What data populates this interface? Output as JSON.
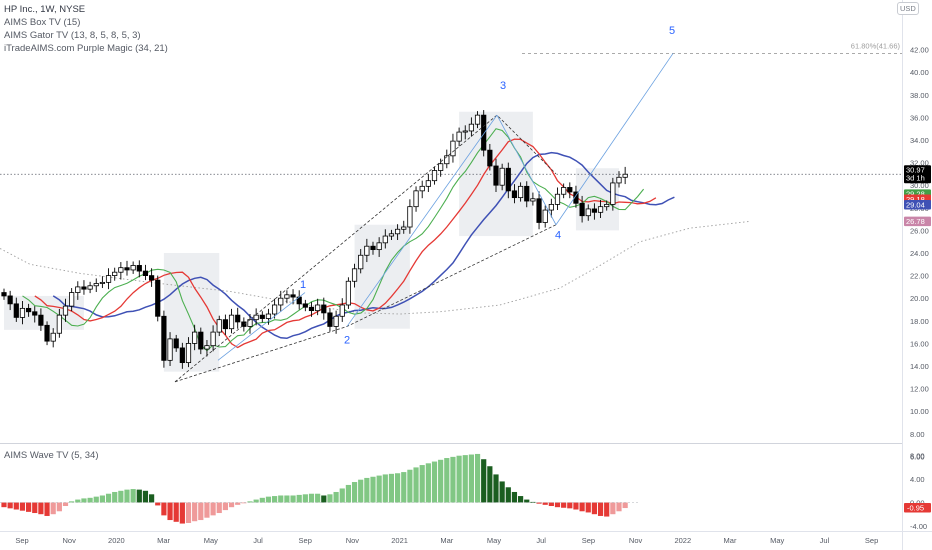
{
  "legend": {
    "symbol": "HP Inc., 1W, NYSE",
    "indicators": [
      "AIMS Box TV (15)",
      "AIMS Gator TV (13, 8, 5, 8, 5, 3)",
      "iTradeAIMS.com Purple Magic (34, 21)"
    ]
  },
  "oscillator": {
    "title": "AIMS Wave TV (5, 34)"
  },
  "currency_badge": "USD",
  "price_axis": {
    "ticks": [
      "42.00",
      "40.00",
      "38.00",
      "36.00",
      "34.00",
      "32.00",
      "30.00",
      "28.00",
      "26.00",
      "24.00",
      "22.00",
      "20.00",
      "18.00",
      "16.00",
      "14.00",
      "12.00",
      "10.00",
      "8.00",
      "6.00"
    ],
    "labels": [
      {
        "text": "30.97",
        "sub": "3d 1h",
        "bg": "#000000",
        "value": 30.97
      },
      {
        "text": "29.28",
        "bg": "#43a047",
        "value": 29.28
      },
      {
        "text": "29.18",
        "bg": "#e53935",
        "value": 29.18
      },
      {
        "text": "29.04",
        "bg": "#3f51b5",
        "value": 29.04
      },
      {
        "text": "26.78",
        "bg": "#c985a8",
        "value": 26.78
      }
    ]
  },
  "osc_axis": {
    "ticks": [
      "8.00",
      "4.00",
      "0.00",
      "-4.00"
    ],
    "label": {
      "text": "-0.95",
      "bg": "#e53935",
      "value": -0.95
    }
  },
  "time_axis": [
    "Sep",
    "Nov",
    "2020",
    "Mar",
    "May",
    "Jul",
    "Sep",
    "Nov",
    "2021",
    "Mar",
    "May",
    "Jul",
    "Sep",
    "Nov",
    "2022",
    "Mar",
    "May",
    "Jul",
    "Sep"
  ],
  "annotations": {
    "fib": "61.80%(41.66)",
    "waves": [
      "1",
      "2",
      "3",
      "4",
      "5"
    ]
  },
  "colors": {
    "green": "#4caf50",
    "red": "#e53935",
    "blue": "#3f51b5",
    "osc_light_green": "#81c784",
    "osc_dark_green": "#1b5e20",
    "osc_red": "#e53935",
    "osc_light_red": "#ef9a9a",
    "box": "#e9ebee"
  },
  "chart_data": {
    "type": "candlestick",
    "timeframe": "1W",
    "ylim": [
      6,
      43
    ],
    "last_price": 30.97,
    "wave_points": [
      {
        "label": "1",
        "value": 20.0
      },
      {
        "label": "2",
        "value": 17.5
      },
      {
        "label": "3",
        "value": 36.2
      },
      {
        "label": "4",
        "value": 26.5
      },
      {
        "label": "5",
        "value": 41.66
      }
    ],
    "close": [
      20.2,
      19.5,
      18.3,
      19.1,
      18.8,
      18.5,
      17.6,
      16.2,
      16.9,
      18.5,
      19.3,
      20.5,
      21.0,
      20.8,
      21.1,
      21.3,
      21.4,
      22.0,
      22.3,
      22.7,
      22.5,
      22.9,
      22.4,
      22.0,
      21.6,
      18.4,
      14.5,
      16.4,
      15.6,
      14.3,
      16.0,
      17.0,
      15.5,
      15.8,
      17.0,
      18.1,
      17.3,
      18.5,
      17.9,
      17.5,
      18.1,
      18.5,
      18.2,
      18.6,
      19.4,
      20.0,
      20.3,
      20.1,
      19.5,
      19.2,
      18.9,
      19.4,
      18.7,
      17.5,
      18.4,
      19.4,
      21.5,
      22.6,
      23.8,
      24.6,
      24.3,
      24.9,
      25.5,
      25.7,
      26.1,
      26.3,
      28.1,
      29.5,
      29.9,
      30.4,
      31.3,
      31.9,
      32.6,
      33.9,
      34.7,
      34.8,
      35.4,
      36.2,
      33.1,
      31.7,
      30.0,
      31.5,
      29.5,
      28.9,
      29.9,
      28.6,
      28.8,
      26.7,
      27.8,
      28.3,
      29.2,
      29.8,
      29.4,
      28.4,
      27.3,
      27.9,
      27.6,
      28.1,
      28.3,
      30.2,
      30.7,
      30.97
    ],
    "wave_osc": [
      -0.8,
      -1.0,
      -1.2,
      -1.4,
      -1.6,
      -1.8,
      -2.0,
      -2.3,
      -2.0,
      -1.5,
      -0.6,
      0.2,
      0.5,
      0.7,
      0.8,
      1.0,
      1.2,
      1.5,
      1.8,
      2.0,
      2.2,
      2.3,
      2.2,
      2.0,
      1.4,
      -0.5,
      -2.2,
      -3.0,
      -3.3,
      -3.6,
      -3.5,
      -3.2,
      -3.0,
      -2.6,
      -2.2,
      -1.8,
      -1.3,
      -0.8,
      -0.4,
      -0.1,
      0.2,
      0.5,
      0.8,
      1.0,
      1.1,
      1.2,
      1.2,
      1.2,
      1.3,
      1.4,
      1.5,
      1.5,
      1.2,
      1.4,
      1.8,
      2.4,
      3.0,
      3.5,
      3.9,
      4.2,
      4.4,
      4.6,
      4.8,
      4.9,
      5.0,
      5.2,
      5.6,
      6.0,
      6.4,
      6.7,
      7.0,
      7.3,
      7.6,
      7.8,
      8.0,
      8.1,
      8.2,
      8.3,
      7.4,
      6.2,
      4.8,
      3.6,
      2.6,
      1.8,
      1.1,
      0.5,
      0.1,
      -0.2,
      -0.4,
      -0.6,
      -0.8,
      -0.9,
      -1.0,
      -1.2,
      -1.5,
      -1.7,
      -2.0,
      -2.3,
      -2.4,
      -2.0,
      -1.5,
      -0.95
    ]
  }
}
